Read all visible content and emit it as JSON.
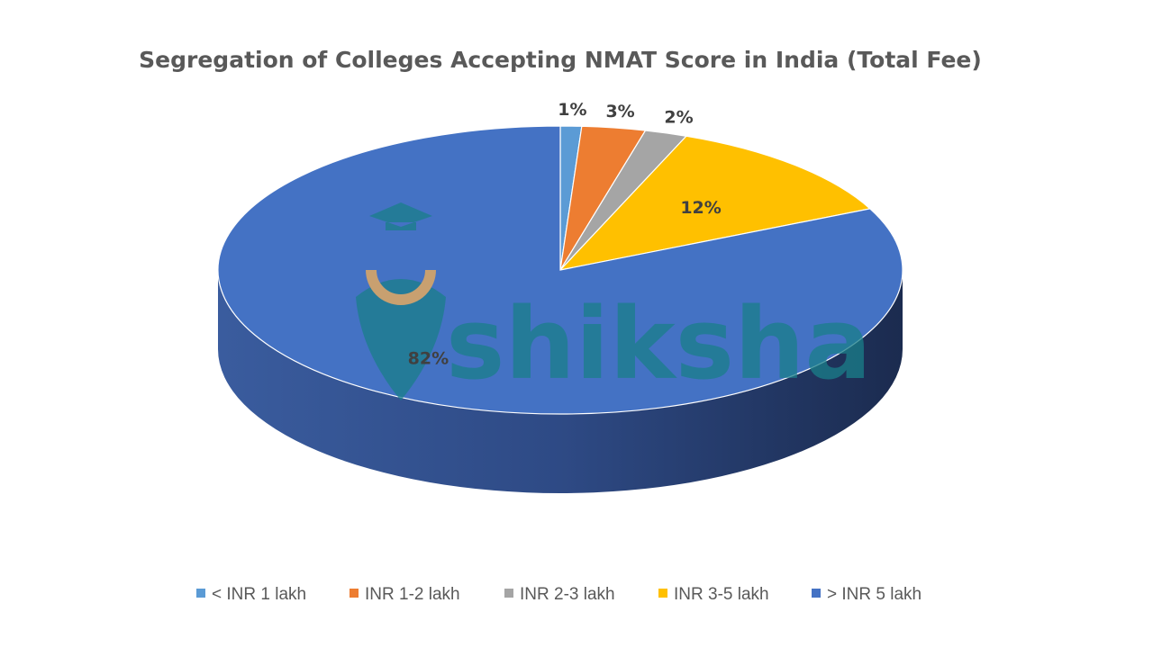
{
  "chart_data": {
    "type": "pie",
    "style": "3d",
    "title": "Segregation of Colleges Accepting NMAT Score in India (Total Fee)",
    "categories": [
      "< INR 1 lakh",
      "INR 1-2 lakh",
      "INR 2-3 lakh",
      "INR 3-5 lakh",
      "> INR 5 lakh"
    ],
    "values": [
      1,
      3,
      2,
      12,
      82
    ],
    "data_labels": [
      "1%",
      "3%",
      "2%",
      "12%",
      "82%"
    ],
    "colors": [
      "#5b9bd5",
      "#ed7d31",
      "#a5a5a5",
      "#ffc000",
      "#4472c4"
    ],
    "legend_position": "bottom"
  },
  "watermark": {
    "text": "shiksha"
  }
}
